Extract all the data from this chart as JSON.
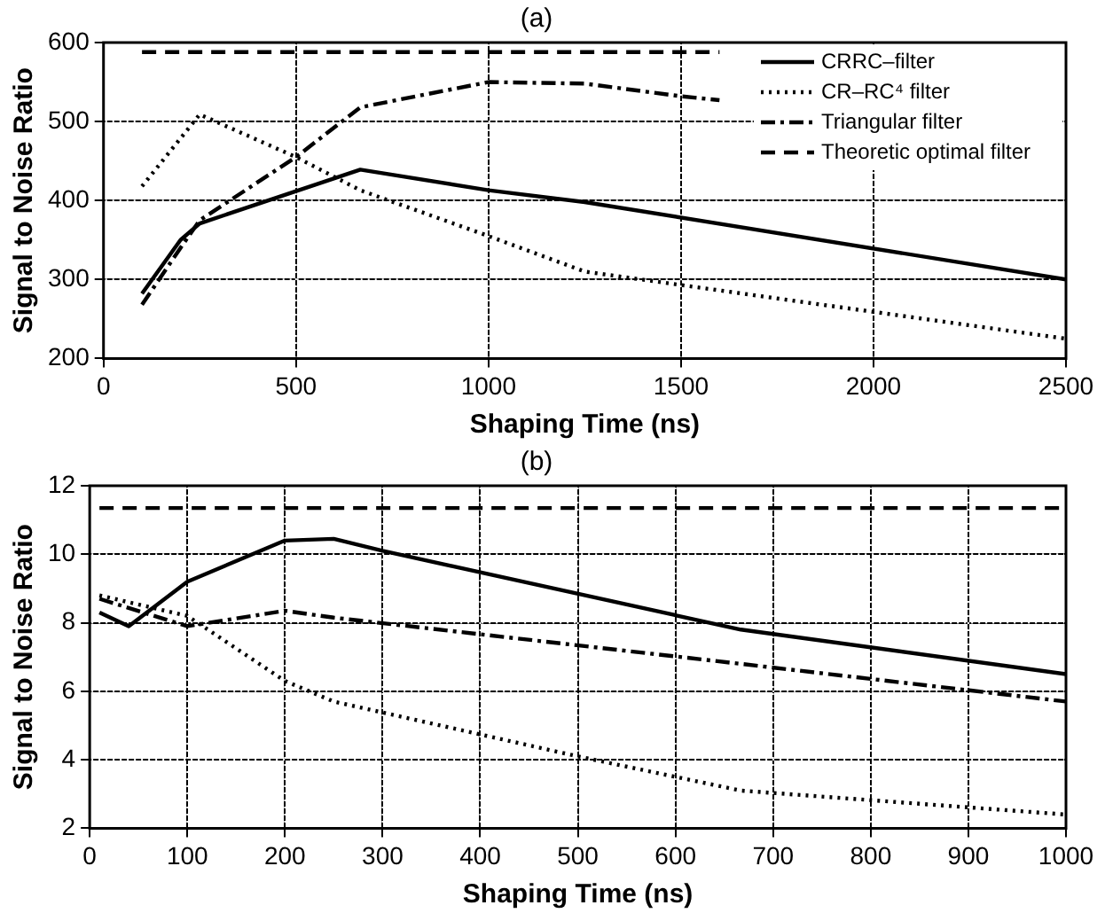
{
  "chart_data": [
    {
      "type": "line",
      "title": "(a)",
      "xlabel": "Shaping Time (ns)",
      "ylabel": "Signal to Noise Ratio",
      "xlim": [
        0,
        2500
      ],
      "xticks": [
        0,
        500,
        1000,
        1500,
        2000,
        2500
      ],
      "ylim": [
        200,
        600
      ],
      "yticks": [
        200,
        300,
        400,
        500,
        600
      ],
      "grid": true,
      "legend": "top right",
      "marker": "none",
      "series": [
        {
          "name": "CRRC–filter",
          "color": "#000000",
          "line_style": "solid",
          "x": [
            100,
            200,
            250,
            667,
            1000,
            1250,
            2500
          ],
          "values": [
            282,
            350,
            371,
            439,
            413,
            398,
            300
          ]
        },
        {
          "name": "CR–RC⁴ filter",
          "color": "#000000",
          "line_style": "dotted",
          "x": [
            100,
            250,
            500,
            667,
            1000,
            1250,
            2500
          ],
          "values": [
            418,
            509,
            455,
            413,
            355,
            310,
            225
          ]
        },
        {
          "name": "Triangular filter",
          "color": "#000000",
          "line_style": "dashdot",
          "x": [
            100,
            200,
            250,
            500,
            667,
            1000,
            1250,
            1500,
            1600
          ],
          "values": [
            268,
            340,
            375,
            455,
            518,
            550,
            548,
            532,
            527
          ]
        },
        {
          "name": "Theoretic optimal filter",
          "color": "#000000",
          "line_style": "dashed",
          "x": [
            100,
            1600
          ],
          "values": [
            588,
            588
          ]
        }
      ]
    },
    {
      "type": "line",
      "title": "(b)",
      "xlabel": "Shaping Time (ns)",
      "ylabel": "Signal to Noise Ratio",
      "xlim": [
        0,
        1000
      ],
      "xticks": [
        0,
        100,
        200,
        300,
        400,
        500,
        600,
        700,
        800,
        900,
        1000
      ],
      "ylim": [
        2,
        12
      ],
      "yticks": [
        2,
        4,
        6,
        8,
        10,
        12
      ],
      "grid": true,
      "marker": "none",
      "series": [
        {
          "color": "#000000",
          "line_style": "solid",
          "x": [
            10,
            40,
            100,
            200,
            250,
            300,
            667,
            1000
          ],
          "values": [
            8.3,
            7.9,
            9.2,
            10.4,
            10.45,
            10.1,
            7.8,
            6.5
          ]
        },
        {
          "color": "#000000",
          "line_style": "dotted",
          "x": [
            10,
            100,
            200,
            250,
            500,
            667,
            1000
          ],
          "values": [
            8.8,
            8.2,
            6.3,
            5.7,
            4.1,
            3.1,
            2.4
          ]
        },
        {
          "color": "#000000",
          "line_style": "dashdot",
          "x": [
            10,
            100,
            200,
            250,
            667,
            1000
          ],
          "values": [
            8.7,
            7.9,
            8.35,
            8.15,
            6.8,
            5.7
          ]
        },
        {
          "color": "#000000",
          "line_style": "dashed",
          "x": [
            10,
            1000
          ],
          "values": [
            11.35,
            11.35
          ]
        }
      ]
    }
  ]
}
